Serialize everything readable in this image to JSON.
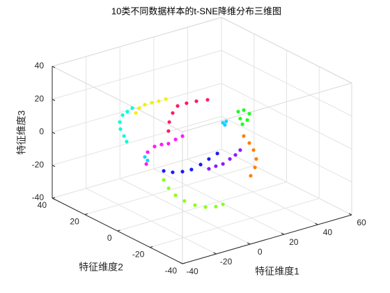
{
  "chart_data": {
    "type": "scatter3d",
    "title": "10类不同数据样本的t-SNE降维分布三维图",
    "xlabel": "特征维度1",
    "ylabel": "特征维度2",
    "zlabel": "特征维度3",
    "xlim": [
      -40,
      60
    ],
    "ylim": [
      -40,
      40
    ],
    "zlim": [
      -40,
      40
    ],
    "xticks": [
      -40,
      -20,
      0,
      20,
      40,
      60
    ],
    "yticks": [
      -40,
      -20,
      0,
      20,
      40
    ],
    "zticks": [
      -40,
      -20,
      0,
      20,
      40
    ],
    "grid": true,
    "series": [
      {
        "color": "#00ffd5",
        "x": [
          -0.4,
          -3.3,
          -6.1,
          -7.8,
          -7.4,
          -5.3,
          -3.7
        ],
        "y": [
          32,
          32,
          32,
          32,
          32,
          32,
          32
        ],
        "z": [
          6.9,
          5.6,
          4.3,
          0.6,
          -3.8,
          -8.6,
          -12.5
        ]
      },
      {
        "color": "#f2f200",
        "x": [
          -2.1,
          -0.1,
          3.2,
          7.3,
          11.4,
          15.6
        ],
        "y": [
          28,
          28,
          28,
          28,
          28,
          28
        ],
        "z": [
          6.4,
          8.8,
          9.9,
          9.9,
          9.6,
          9.6
        ]
      },
      {
        "color": "#ff1a66",
        "x": [
          -2.1,
          -1.6,
          0.4,
          3.3,
          8.6,
          14.4,
          21.0
        ],
        "y": [
          8,
          8,
          8,
          8,
          8,
          8,
          8
        ],
        "z": [
          5.4,
          10.7,
          15.6,
          19.0,
          19.1,
          18.6,
          17.5
        ]
      },
      {
        "color": "#ff1aff",
        "x": [
          -22.1,
          -18.0,
          -13.9,
          -9.8,
          -5.6,
          -1.5,
          -22.9
        ],
        "y": [
          0,
          0,
          0,
          0,
          0,
          0,
          0
        ],
        "z": [
          2.5,
          4.7,
          4.7,
          4.0,
          5.3,
          6.1,
          -4.5
        ]
      },
      {
        "color": "#1a1aff",
        "x": [
          -28.0,
          -22.7,
          -16.9,
          -11.6,
          -6.2,
          -1.3,
          3.7
        ],
        "y": [
          -16,
          -16,
          -16,
          -16,
          -16,
          -16,
          -16
        ],
        "z": [
          0.8,
          -1.6,
          -2.9,
          -3.2,
          -1.8,
          0.1,
          2.0
        ]
      },
      {
        "color": "#8c1aff",
        "x": [
          6.4,
          10.5,
          14.7,
          18.8,
          22.1,
          24.9
        ],
        "y": [
          -8,
          -8,
          -8,
          -8,
          -8,
          -8
        ],
        "z": [
          -12.1,
          -11.7,
          -11.6,
          -9.8,
          -8.3,
          -6.2
        ]
      },
      {
        "color": "#ff8000",
        "x": [
          11.6,
          14.9,
          17.4,
          19.0,
          18.2,
          15.7
        ],
        "y": [
          -24,
          -24,
          -24,
          -24,
          -24,
          -24
        ],
        "z": [
          14.2,
          9.0,
          4.0,
          -1.9,
          -6.8,
          -11.1
        ]
      },
      {
        "color": "#1aff1a",
        "x": [
          23.7,
          27.0,
          30.3,
          24.9,
          29.1,
          26.2
        ],
        "y": [
          -8,
          -8,
          -8,
          -8,
          -8,
          -8
        ],
        "z": [
          17.5,
          17.4,
          14.3,
          12.9,
          10.8,
          9.1
        ]
      },
      {
        "color": "#8cff1a",
        "x": [
          -35.7,
          -32.8,
          -28.7,
          -23.4,
          -17.2,
          -11.0,
          -4.9,
          -0.7
        ],
        "y": [
          -24,
          -24,
          -24,
          -24,
          -24,
          -24,
          -24,
          -24
        ],
        "z": [
          1.6,
          -4.3,
          -9.8,
          -14.8,
          -19.2,
          -22.2,
          -23.7,
          -23.6
        ]
      },
      {
        "color": "#1ad1ff",
        "x": [
          18.5,
          20.5,
          19.7,
          -27.6,
          -26.0
        ],
        "y": [
          -4,
          -4,
          -4,
          -4,
          -4
        ],
        "z": [
          10.3,
          10.5,
          8.6,
          3.2,
          0.6
        ]
      }
    ]
  }
}
